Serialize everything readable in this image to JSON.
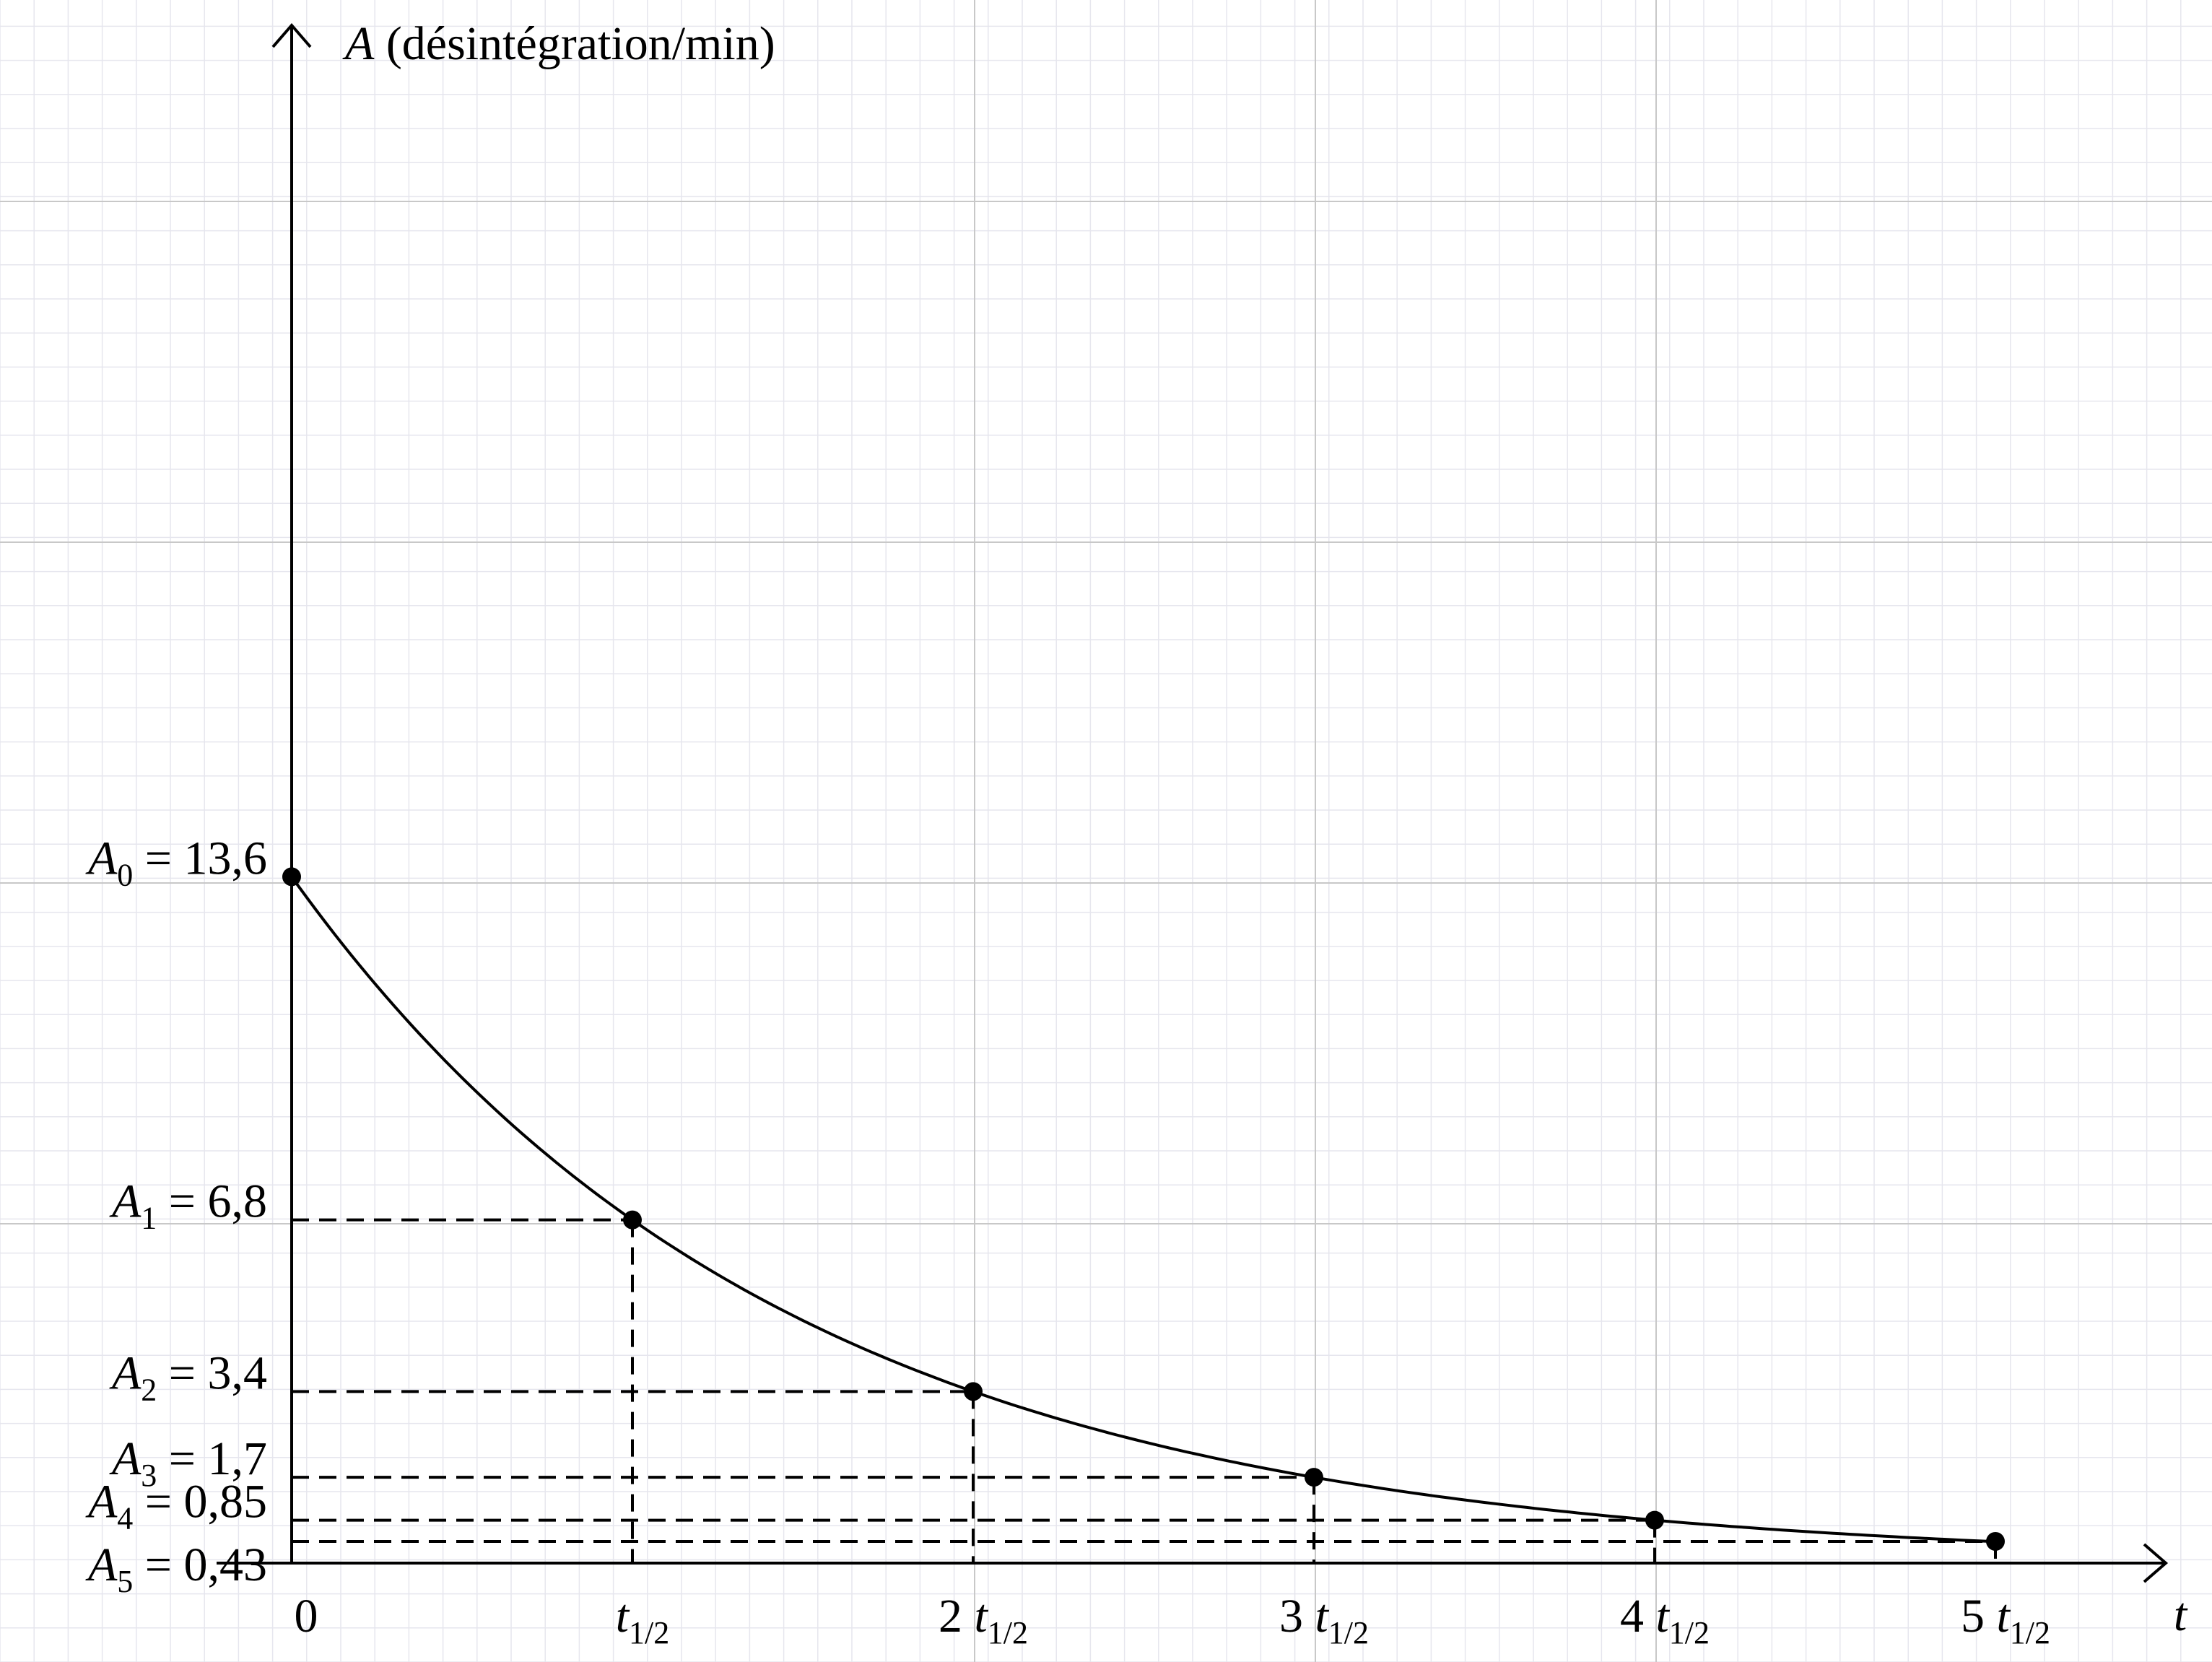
{
  "chart_data": {
    "type": "line",
    "ylabel": "(désintégration/min)",
    "ylabel_symbol": "A",
    "xlabel": "t",
    "x": [
      0,
      1,
      2,
      3,
      4,
      5
    ],
    "values": [
      13.6,
      6.8,
      3.4,
      1.7,
      0.85,
      0.43
    ],
    "xlim": [
      0,
      5.45
    ],
    "ylim": [
      0,
      16
    ],
    "grid": true,
    "x_tick_labels": [
      {
        "coef": "0",
        "sym": "",
        "sub": ""
      },
      {
        "coef": "",
        "sym": "t",
        "sub": "1/2"
      },
      {
        "coef": "2",
        "sym": "t",
        "sub": "1/2"
      },
      {
        "coef": "3",
        "sym": "t",
        "sub": "1/2"
      },
      {
        "coef": "4",
        "sym": "t",
        "sub": "1/2"
      },
      {
        "coef": "5",
        "sym": "t",
        "sub": "1/2"
      }
    ],
    "y_labels": [
      {
        "sym": "A",
        "sub": "0",
        "text": "= 13,6"
      },
      {
        "sym": "A",
        "sub": "1",
        "text": "= 6,8"
      },
      {
        "sym": "A",
        "sub": "2",
        "text": "= 3,4"
      },
      {
        "sym": "A",
        "sub": "3",
        "text": "= 1,7"
      },
      {
        "sym": "A",
        "sub": "4",
        "text": "= 0,85"
      },
      {
        "sym": "A",
        "sub": "5",
        "text": "= 0,43"
      }
    ],
    "colors": {
      "curve": "#000000",
      "minor_grid": "#e6e6ee",
      "major_grid": "#c8c8c8"
    }
  }
}
